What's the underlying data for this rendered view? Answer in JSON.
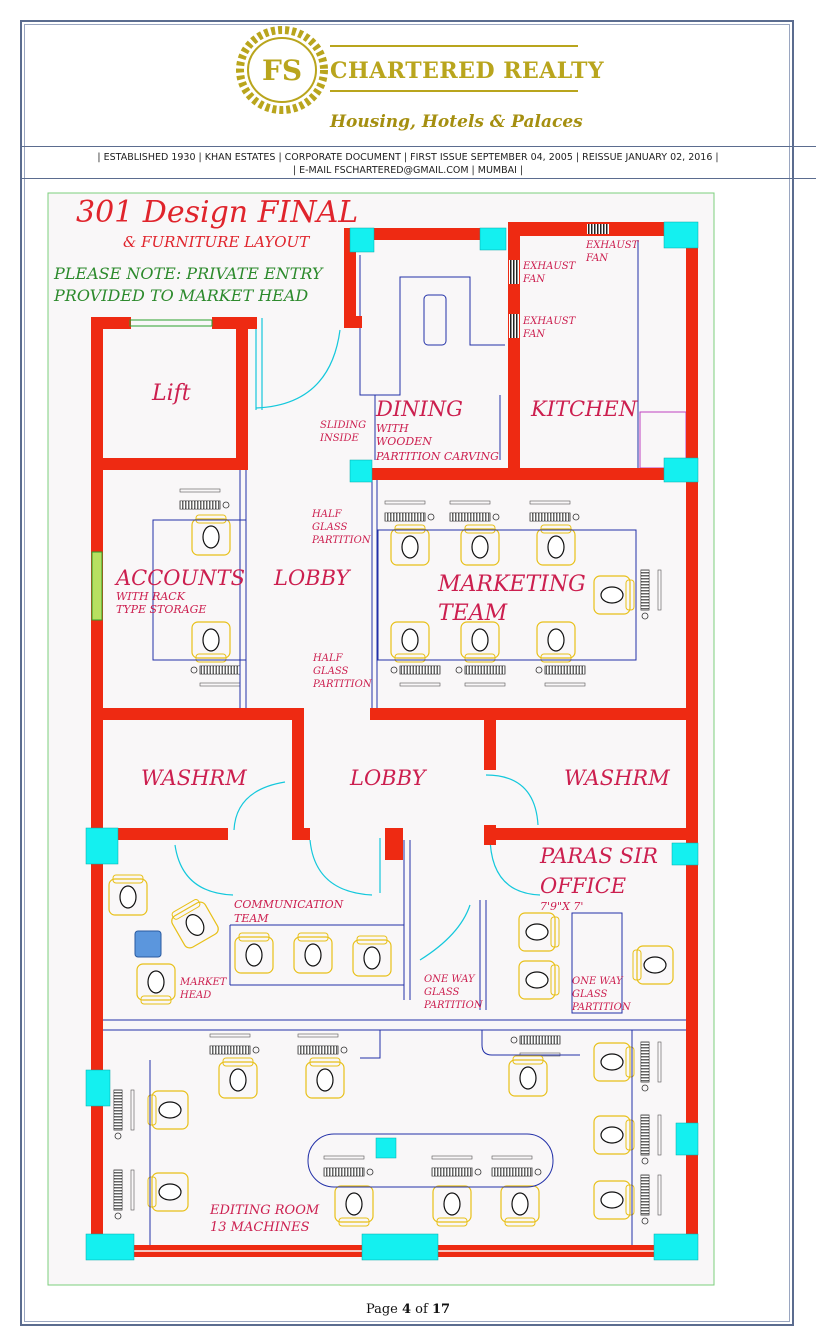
{
  "header": {
    "logo_text": "FS",
    "company": "CHARTERED REALTY",
    "tagline": "Housing, Hotels & Palaces",
    "info_line1": "| ESTABLISHED 1930 |  KHAN ESTATES  |  CORPORATE DOCUMENT  |  FIRST ISSUE SEPTEMBER 04, 2005  |  REISSUE JANUARY 02, 2016  |",
    "info_line2": "| E-MAIL FSCHARTERED@GMAIL.COM | MUMBAI |"
  },
  "plan": {
    "title": "301 Design FINAL",
    "subtitle": "& FURNITURE LAYOUT",
    "note_line1": "PLEASE NOTE: PRIVATE ENTRY",
    "note_line2": "PROVIDED TO MARKET HEAD",
    "colors": {
      "wall": "#ee2a12",
      "column": "#14f0f0",
      "furniture": "#e8c018",
      "label": "#cc1f4f",
      "note": "#2c8a2c",
      "glass": "#2230a8"
    },
    "rooms": {
      "lift": "Lift",
      "dining": "DINING",
      "dining_note1": "WITH",
      "dining_note2": "WOODEN",
      "dining_note3": "PARTITION CARVING",
      "kitchen": "KITCHEN",
      "exhaust_fan": "EXHAUST",
      "fan": "FAN",
      "sliding1": "SLIDING",
      "sliding2": "INSIDE",
      "accounts": "ACCOUNTS",
      "accounts_note1": "WITH RACK",
      "accounts_note2": "TYPE STORAGE",
      "lobby": "LOBBY",
      "half_glass1": "HALF",
      "half_glass2": "GLASS",
      "half_glass3": "PARTITION",
      "marketing1": "MARKETING",
      "marketing2": "TEAM",
      "washroom": "WASHRM",
      "paras1": "PARAS SIR",
      "paras2": "OFFICE",
      "paras_size": "7'9\"X 7'",
      "communication1": "COMMUNICATION",
      "communication2": "TEAM",
      "market_head1": "MARKET",
      "market_head2": "HEAD",
      "one_way1": "ONE WAY",
      "one_way2": "GLASS",
      "one_way3": "PARTITION",
      "editing1": "EDITING ROOM",
      "editing2": "13 MACHINES"
    }
  },
  "footer": {
    "prefix": "Page ",
    "current": "4",
    "mid": " of ",
    "total": "17"
  }
}
